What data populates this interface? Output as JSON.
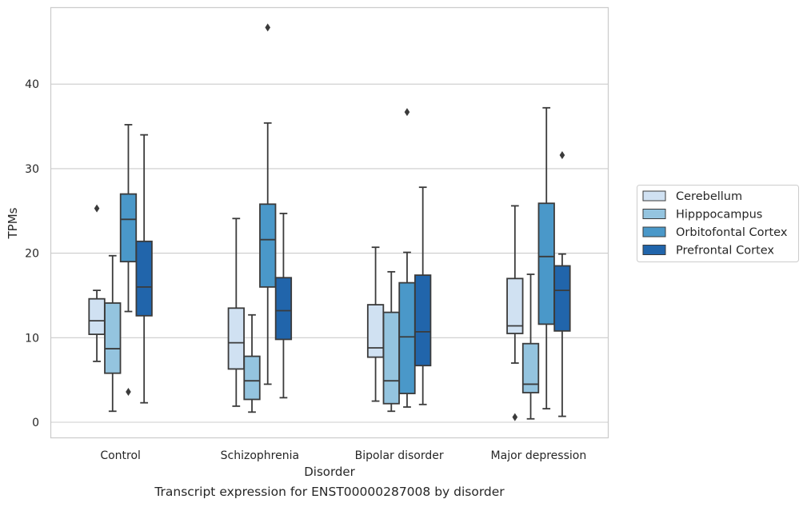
{
  "caption": "Transcript expression for ENST00000287008 by disorder",
  "chart_data": {
    "type": "box",
    "title": "",
    "xlabel": "Disorder",
    "ylabel": "TPMs",
    "ylim": [
      -1.8,
      49
    ],
    "yticks": [
      0,
      10,
      20,
      30,
      40
    ],
    "grid": true,
    "legend_position": "right",
    "categories": [
      "Control",
      "Schizophrenia",
      "Bipolar disorder",
      "Major depression"
    ],
    "series": [
      {
        "name": "Cerebellum",
        "color": "#d0e1f2",
        "boxes": [
          {
            "whislo": 7.2,
            "q1": 10.4,
            "med": 12.0,
            "q3": 14.6,
            "whishi": 15.6,
            "fliers": [
              25.3
            ]
          },
          {
            "whislo": 1.9,
            "q1": 6.3,
            "med": 9.4,
            "q3": 13.5,
            "whishi": 24.1,
            "fliers": []
          },
          {
            "whislo": 2.5,
            "q1": 7.7,
            "med": 8.8,
            "q3": 13.9,
            "whishi": 20.7,
            "fliers": []
          },
          {
            "whislo": 7.0,
            "q1": 10.5,
            "med": 11.4,
            "q3": 17.0,
            "whishi": 25.6,
            "fliers": [
              0.6
            ]
          }
        ]
      },
      {
        "name": "Hipppocampus",
        "color": "#94c4df",
        "boxes": [
          {
            "whislo": 1.3,
            "q1": 5.8,
            "med": 8.7,
            "q3": 14.1,
            "whishi": 19.7,
            "fliers": []
          },
          {
            "whislo": 1.2,
            "q1": 2.7,
            "med": 4.9,
            "q3": 7.8,
            "whishi": 12.7,
            "fliers": []
          },
          {
            "whislo": 1.3,
            "q1": 2.2,
            "med": 4.9,
            "q3": 13.0,
            "whishi": 17.8,
            "fliers": []
          },
          {
            "whislo": 0.4,
            "q1": 3.5,
            "med": 4.5,
            "q3": 9.3,
            "whishi": 17.5,
            "fliers": []
          }
        ]
      },
      {
        "name": "Orbitofontal Cortex",
        "color": "#4a98c9",
        "boxes": [
          {
            "whislo": 13.1,
            "q1": 19.0,
            "med": 24.0,
            "q3": 27.0,
            "whishi": 35.2,
            "fliers": [
              3.6
            ]
          },
          {
            "whislo": 4.5,
            "q1": 16.0,
            "med": 21.6,
            "q3": 25.8,
            "whishi": 35.4,
            "fliers": [
              46.7
            ]
          },
          {
            "whislo": 1.8,
            "q1": 3.4,
            "med": 10.1,
            "q3": 16.5,
            "whishi": 20.1,
            "fliers": [
              36.7
            ]
          },
          {
            "whislo": 1.6,
            "q1": 11.6,
            "med": 19.6,
            "q3": 25.9,
            "whishi": 37.2,
            "fliers": []
          }
        ]
      },
      {
        "name": "Prefrontal Cortex",
        "color": "#2165ab",
        "boxes": [
          {
            "whislo": 2.3,
            "q1": 12.6,
            "med": 16.0,
            "q3": 21.4,
            "whishi": 34.0,
            "fliers": []
          },
          {
            "whislo": 2.9,
            "q1": 9.8,
            "med": 13.2,
            "q3": 17.1,
            "whishi": 24.7,
            "fliers": []
          },
          {
            "whislo": 2.1,
            "q1": 6.7,
            "med": 10.7,
            "q3": 17.4,
            "whishi": 27.8,
            "fliers": []
          },
          {
            "whislo": 0.7,
            "q1": 10.8,
            "med": 15.6,
            "q3": 18.5,
            "whishi": 19.9,
            "fliers": [
              31.6
            ]
          }
        ]
      }
    ]
  }
}
